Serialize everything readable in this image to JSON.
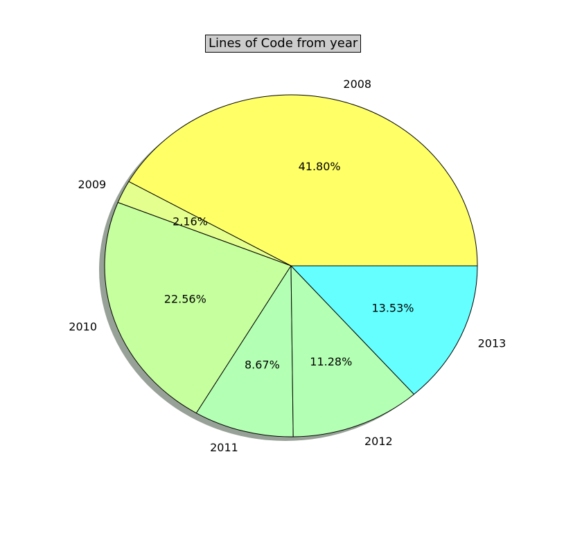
{
  "chart_data": {
    "type": "pie",
    "title": "Lines of Code from year",
    "categories": [
      "2008",
      "2009",
      "2010",
      "2011",
      "2012",
      "2013"
    ],
    "values": [
      41.8,
      2.16,
      22.56,
      8.67,
      11.28,
      13.53
    ],
    "value_labels": [
      "41.80%",
      "2.16%",
      "22.56%",
      "8.67%",
      "11.28%",
      "13.53%"
    ],
    "colors": [
      "#ffff66",
      "#e4ff8e",
      "#c6ff9e",
      "#b3ffb3",
      "#b3ffb3",
      "#66ffff"
    ],
    "start_angle_deg": 0,
    "direction": "counterclockwise",
    "shadow": true
  }
}
